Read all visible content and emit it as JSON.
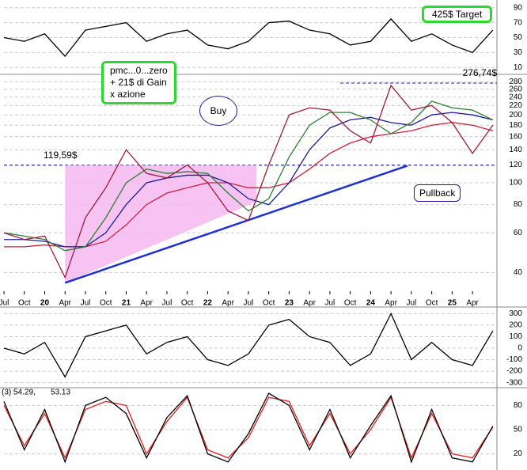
{
  "chart_data": [
    {
      "type": "line",
      "ylim": [
        5,
        95
      ],
      "yticks": [
        10,
        30,
        50,
        70,
        90
      ],
      "x": [
        2019.5,
        2019.75,
        2020,
        2020.25,
        2020.5,
        2020.75,
        2021,
        2021.25,
        2021.5,
        2021.75,
        2022,
        2022.25,
        2022.5,
        2022.75,
        2023,
        2023.25,
        2023.5,
        2023.75,
        2024,
        2024.25,
        2024.5,
        2024.75,
        2025,
        2025.25,
        2025.5
      ],
      "series": [
        {
          "color": "#000000",
          "values": [
            50,
            45,
            55,
            25,
            60,
            65,
            70,
            45,
            55,
            60,
            40,
            35,
            45,
            70,
            72,
            60,
            55,
            40,
            45,
            75,
            45,
            55,
            40,
            30,
            60
          ]
        }
      ]
    },
    {
      "type": "line",
      "log_scale": true,
      "ylim": [
        32,
        300
      ],
      "yticks": [
        40,
        60,
        80,
        100,
        120,
        140,
        160,
        180,
        200,
        220,
        240,
        260,
        280
      ],
      "xlim": [
        2019.5,
        2025.55
      ],
      "xticks": [
        {
          "value": 2019.5,
          "label": "Jul"
        },
        {
          "value": 2019.75,
          "label": "Oct"
        },
        {
          "value": 2020,
          "label": "20"
        },
        {
          "value": 2020.25,
          "label": "Apr"
        },
        {
          "value": 2020.5,
          "label": "Jul"
        },
        {
          "value": 2020.75,
          "label": "Oct"
        },
        {
          "value": 2021,
          "label": "21"
        },
        {
          "value": 2021.25,
          "label": "Apr"
        },
        {
          "value": 2021.5,
          "label": "Jul"
        },
        {
          "value": 2021.75,
          "label": "Oct"
        },
        {
          "value": 2022,
          "label": "22"
        },
        {
          "value": 2022.25,
          "label": "Apr"
        },
        {
          "value": 2022.5,
          "label": "Jul"
        },
        {
          "value": 2022.75,
          "label": "Oct"
        },
        {
          "value": 2023,
          "label": "23"
        },
        {
          "value": 2023.25,
          "label": "Apr"
        },
        {
          "value": 2023.5,
          "label": "Jul"
        },
        {
          "value": 2023.75,
          "label": "Oct"
        },
        {
          "value": 2024,
          "label": "24"
        },
        {
          "value": 2024.25,
          "label": "Apr"
        },
        {
          "value": 2024.5,
          "label": "Jul"
        },
        {
          "value": 2024.75,
          "label": "Oct"
        },
        {
          "value": 2025,
          "label": "25"
        },
        {
          "value": 2025.25,
          "label": "Apr"
        }
      ],
      "x": [
        2019.5,
        2019.75,
        2020,
        2020.25,
        2020.5,
        2020.75,
        2021,
        2021.25,
        2021.5,
        2021.75,
        2022,
        2022.25,
        2022.5,
        2022.75,
        2023,
        2023.25,
        2023.5,
        2023.75,
        2024,
        2024.25,
        2024.5,
        2024.75,
        2025,
        2025.25,
        2025.5
      ],
      "series": [
        {
          "color": "#cc1f3f",
          "values": [
            52,
            52,
            53,
            52,
            52,
            55,
            65,
            80,
            90,
            95,
            100,
            100,
            95,
            95,
            100,
            115,
            135,
            150,
            160,
            165,
            170,
            180,
            185,
            180,
            170
          ]
        },
        {
          "color": "#1c1c9c",
          "values": [
            56,
            56,
            55,
            52,
            52,
            60,
            80,
            100,
            105,
            108,
            108,
            100,
            85,
            80,
            100,
            140,
            175,
            190,
            195,
            185,
            180,
            200,
            205,
            200,
            190
          ]
        },
        {
          "color": "#2e7d32",
          "values": [
            60,
            58,
            56,
            50,
            52,
            70,
            100,
            115,
            110,
            112,
            110,
            90,
            75,
            85,
            130,
            180,
            205,
            205,
            190,
            165,
            185,
            230,
            215,
            210,
            190
          ]
        },
        {
          "color": "#9e1b3a",
          "values": [
            60,
            56,
            58,
            38,
            70,
            95,
            140,
            110,
            105,
            120,
            100,
            75,
            68,
            120,
            200,
            215,
            210,
            170,
            150,
            270,
            210,
            220,
            185,
            135,
            180
          ]
        }
      ],
      "reference_lines": [
        {
          "value": 119.59,
          "label": "119,59$"
        },
        {
          "value": 276.74,
          "label": "276,74$"
        }
      ],
      "trendline": {
        "x": [
          2020.25,
          2024.45
        ],
        "values": [
          36,
          119
        ]
      },
      "annotations": [
        "425$ Target",
        "pmc...0...zero",
        "+ 21$ di Gain",
        "x azione",
        "Buy",
        "Pullback"
      ]
    },
    {
      "type": "line",
      "ylim": [
        -330,
        330
      ],
      "yticks": [
        -300,
        -200,
        -100,
        0,
        100,
        200,
        300
      ],
      "x": [
        2019.5,
        2019.75,
        2020,
        2020.25,
        2020.5,
        2020.75,
        2021,
        2021.25,
        2021.5,
        2021.75,
        2022,
        2022.25,
        2022.5,
        2022.75,
        2023,
        2023.25,
        2023.5,
        2023.75,
        2024,
        2024.25,
        2024.5,
        2024.75,
        2025,
        2025.25,
        2025.5
      ],
      "series": [
        {
          "color": "#000000",
          "values": [
            0,
            -50,
            50,
            -250,
            100,
            150,
            200,
            -50,
            50,
            100,
            -100,
            -150,
            -50,
            200,
            250,
            100,
            50,
            -150,
            -50,
            300,
            -100,
            50,
            -100,
            -150,
            150
          ]
        }
      ]
    },
    {
      "type": "line",
      "ylim": [
        0,
        100
      ],
      "yticks": [
        20,
        50,
        80
      ],
      "legend_text": [
        "(3) 54.29,",
        "53.13"
      ],
      "x": [
        2019.5,
        2019.75,
        2020,
        2020.25,
        2020.5,
        2020.75,
        2021,
        2021.25,
        2021.5,
        2021.75,
        2022,
        2022.25,
        2022.5,
        2022.75,
        2023,
        2023.25,
        2023.5,
        2023.75,
        2024,
        2024.25,
        2024.5,
        2024.75,
        2025,
        2025.25,
        2025.5
      ],
      "series": [
        {
          "color": "#e0201f",
          "values": [
            80,
            30,
            70,
            15,
            75,
            85,
            80,
            20,
            60,
            90,
            25,
            15,
            40,
            90,
            85,
            30,
            70,
            20,
            50,
            90,
            15,
            70,
            20,
            15,
            53.13
          ]
        },
        {
          "color": "#000000",
          "values": [
            85,
            25,
            75,
            10,
            80,
            90,
            70,
            15,
            65,
            92,
            20,
            10,
            45,
            95,
            80,
            25,
            75,
            15,
            55,
            92,
            10,
            75,
            15,
            10,
            54.29
          ]
        }
      ]
    }
  ]
}
